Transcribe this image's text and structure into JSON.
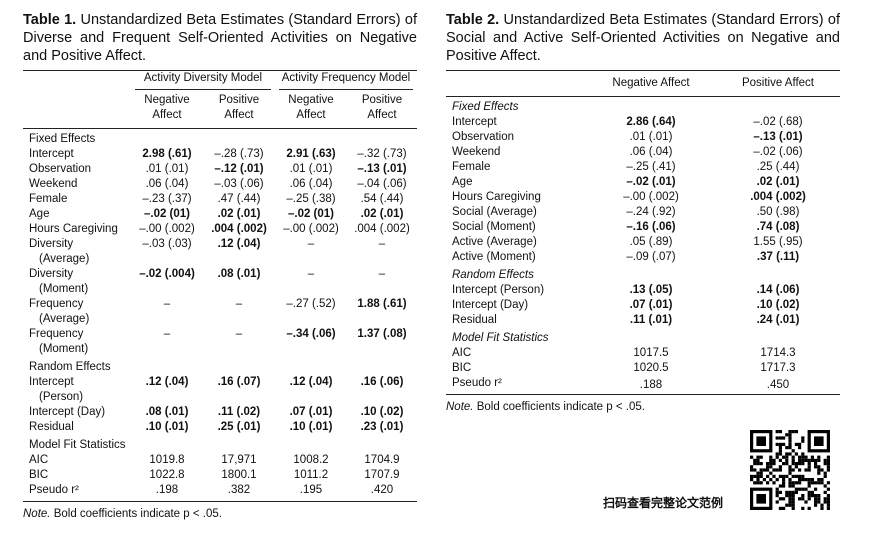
{
  "table1": {
    "label": "Table 1.",
    "title": "Unstandardized Beta Estimates (Standard Errors) of Diverse and Frequent Self-Oriented Activities on Negative and Positive Affect.",
    "group_headers": [
      "Activity Diversity Model",
      "Activity Frequency Model"
    ],
    "col_headers": [
      [
        "Negative",
        "Affect"
      ],
      [
        "Positive",
        "Affect"
      ],
      [
        "Negative",
        "Affect"
      ],
      [
        "Positive",
        "Affect"
      ]
    ],
    "sections": [
      {
        "name": "Fixed Effects",
        "rows": [
          {
            "label": [
              "Intercept"
            ],
            "cells": [
              {
                "v": "2.98 (.61)",
                "b": true
              },
              {
                "v": "–.28 (.73)",
                "b": false
              },
              {
                "v": "2.91 (.63)",
                "b": true
              },
              {
                "v": "–.32 (.73)",
                "b": false
              }
            ]
          },
          {
            "label": [
              "Observation"
            ],
            "cells": [
              {
                "v": ".01 (.01)",
                "b": false
              },
              {
                "v": "–.12 (.01)",
                "b": true
              },
              {
                "v": ".01 (.01)",
                "b": false
              },
              {
                "v": "–.13 (.01)",
                "b": true
              }
            ]
          },
          {
            "label": [
              "Weekend"
            ],
            "cells": [
              {
                "v": ".06 (.04)",
                "b": false
              },
              {
                "v": "–.03 (.06)",
                "b": false
              },
              {
                "v": ".06 (.04)",
                "b": false
              },
              {
                "v": "–.04 (.06)",
                "b": false
              }
            ]
          },
          {
            "label": [
              "Female"
            ],
            "cells": [
              {
                "v": "–.23 (.37)",
                "b": false
              },
              {
                "v": ".47 (.44)",
                "b": false
              },
              {
                "v": "–.25 (.38)",
                "b": false
              },
              {
                "v": ".54 (.44)",
                "b": false
              }
            ]
          },
          {
            "label": [
              "Age"
            ],
            "cells": [
              {
                "v": "–.02 (01)",
                "b": true
              },
              {
                "v": ".02 (.01)",
                "b": true
              },
              {
                "v": "–.02 (01)",
                "b": true
              },
              {
                "v": ".02 (.01)",
                "b": true
              }
            ]
          },
          {
            "label": [
              "Hours Caregiving"
            ],
            "cells": [
              {
                "v": "–.00 (.002)",
                "b": false
              },
              {
                "v": ".004 (.002)",
                "b": true
              },
              {
                "v": "–.00 (.002)",
                "b": false
              },
              {
                "v": ".004 (.002)",
                "b": false
              }
            ]
          },
          {
            "label": [
              "Diversity",
              "(Average)"
            ],
            "cells": [
              {
                "v": "–.03 (.03)",
                "b": false
              },
              {
                "v": ".12 (.04)",
                "b": true
              },
              {
                "v": "–",
                "b": false
              },
              {
                "v": "–",
                "b": false
              }
            ]
          },
          {
            "label": [
              "Diversity",
              "(Moment)"
            ],
            "cells": [
              {
                "v": "–.02 (.004)",
                "b": true
              },
              {
                "v": ".08 (.01)",
                "b": true
              },
              {
                "v": "–",
                "b": false
              },
              {
                "v": "–",
                "b": false
              }
            ]
          },
          {
            "label": [
              "Frequency",
              "(Average)"
            ],
            "cells": [
              {
                "v": "–",
                "b": false
              },
              {
                "v": "–",
                "b": false
              },
              {
                "v": "–.27 (.52)",
                "b": false
              },
              {
                "v": "1.88 (.61)",
                "b": true
              }
            ]
          },
          {
            "label": [
              "Frequency",
              "(Moment)"
            ],
            "cells": [
              {
                "v": "–",
                "b": false
              },
              {
                "v": "–",
                "b": false
              },
              {
                "v": "–.34 (.06)",
                "b": true
              },
              {
                "v": "1.37 (.08)",
                "b": true
              }
            ]
          }
        ]
      },
      {
        "name": "Random Effects",
        "rows": [
          {
            "label": [
              "Intercept",
              "(Person)"
            ],
            "cells": [
              {
                "v": ".12 (.04)",
                "b": true
              },
              {
                "v": ".16 (.07)",
                "b": true
              },
              {
                "v": ".12 (.04)",
                "b": true
              },
              {
                "v": ".16 (.06)",
                "b": true
              }
            ]
          },
          {
            "label": [
              "Intercept (Day)"
            ],
            "cells": [
              {
                "v": ".08 (.01)",
                "b": true
              },
              {
                "v": ".11 (.02)",
                "b": true
              },
              {
                "v": ".07 (.01)",
                "b": true
              },
              {
                "v": ".10 (.02)",
                "b": true
              }
            ]
          },
          {
            "label": [
              "Residual"
            ],
            "cells": [
              {
                "v": ".10 (.01)",
                "b": true
              },
              {
                "v": ".25 (.01)",
                "b": true
              },
              {
                "v": ".10 (.01)",
                "b": true
              },
              {
                "v": ".23 (.01)",
                "b": true
              }
            ]
          }
        ]
      },
      {
        "name": "Model Fit Statistics",
        "rows": [
          {
            "label": [
              "AIC"
            ],
            "cells": [
              {
                "v": "1019.8",
                "b": false
              },
              {
                "v": "17,971",
                "b": false
              },
              {
                "v": "1008.2",
                "b": false
              },
              {
                "v": "1704.9",
                "b": false
              }
            ]
          },
          {
            "label": [
              "BIC"
            ],
            "cells": [
              {
                "v": "1022.8",
                "b": false
              },
              {
                "v": "1800.1",
                "b": false
              },
              {
                "v": "1011.2",
                "b": false
              },
              {
                "v": "1707.9",
                "b": false
              }
            ]
          },
          {
            "label": [
              "Pseudo r²"
            ],
            "cells": [
              {
                "v": ".198",
                "b": false
              },
              {
                "v": ".382",
                "b": false
              },
              {
                "v": ".195",
                "b": false
              },
              {
                "v": ".420",
                "b": false
              }
            ]
          }
        ]
      }
    ],
    "note_label": "Note.",
    "note_text": " Bold coefficients indicate p < .05."
  },
  "table2": {
    "label": "Table 2.",
    "title": "Unstandardized Beta Estimates (Standard Errors) of Social and Active Self-Oriented Activities on Negative and Positive Affect.",
    "col_headers": [
      "Negative Affect",
      "Positive Affect"
    ],
    "sections": [
      {
        "name": "Fixed Effects",
        "rows": [
          {
            "label": "Intercept",
            "cells": [
              {
                "v": "2.86 (.64)",
                "b": true
              },
              {
                "v": "–.02 (.68)",
                "b": false
              }
            ]
          },
          {
            "label": "Observation",
            "cells": [
              {
                "v": ".01 (.01)",
                "b": false
              },
              {
                "v": "–.13 (.01)",
                "b": true
              }
            ]
          },
          {
            "label": "Weekend",
            "cells": [
              {
                "v": ".06 (.04)",
                "b": false
              },
              {
                "v": "–.02 (.06)",
                "b": false
              }
            ]
          },
          {
            "label": "Female",
            "cells": [
              {
                "v": "–.25 (.41)",
                "b": false
              },
              {
                "v": ".25 (.44)",
                "b": false
              }
            ]
          },
          {
            "label": "Age",
            "cells": [
              {
                "v": "–.02 (.01)",
                "b": true
              },
              {
                "v": ".02 (.01)",
                "b": true
              }
            ]
          },
          {
            "label": "Hours Caregiving",
            "cells": [
              {
                "v": "–.00 (.002)",
                "b": false
              },
              {
                "v": ".004 (.002)",
                "b": true
              }
            ]
          },
          {
            "label": "Social (Average)",
            "cells": [
              {
                "v": "–.24 (.92)",
                "b": false
              },
              {
                "v": ".50 (.98)",
                "b": false
              }
            ]
          },
          {
            "label": "Social (Moment)",
            "cells": [
              {
                "v": "–.16 (.06)",
                "b": true
              },
              {
                "v": ".74 (.08)",
                "b": true
              }
            ]
          },
          {
            "label": "Active (Average)",
            "cells": [
              {
                "v": ".05 (.89)",
                "b": false
              },
              {
                "v": "1.55 (.95)",
                "b": false
              }
            ]
          },
          {
            "label": "Active (Moment)",
            "cells": [
              {
                "v": "–.09 (.07)",
                "b": false
              },
              {
                "v": ".37 (.11)",
                "b": true
              }
            ]
          }
        ]
      },
      {
        "name": "Random Effects",
        "rows": [
          {
            "label": "Intercept (Person)",
            "cells": [
              {
                "v": ".13 (.05)",
                "b": true
              },
              {
                "v": ".14 (.06)",
                "b": true
              }
            ]
          },
          {
            "label": "Intercept (Day)",
            "cells": [
              {
                "v": ".07 (.01)",
                "b": true
              },
              {
                "v": ".10 (.02)",
                "b": true
              }
            ]
          },
          {
            "label": "Residual",
            "cells": [
              {
                "v": ".11 (.01)",
                "b": true
              },
              {
                "v": ".24 (.01)",
                "b": true
              }
            ]
          }
        ]
      },
      {
        "name": "Model Fit Statistics",
        "rows": [
          {
            "label": "AIC",
            "cells": [
              {
                "v": "1017.5",
                "b": false
              },
              {
                "v": "1714.3",
                "b": false
              }
            ]
          },
          {
            "label": "BIC",
            "cells": [
              {
                "v": "1020.5",
                "b": false
              },
              {
                "v": "1717.3",
                "b": false
              }
            ]
          },
          {
            "label": "Pseudo r²",
            "cells": [
              {
                "v": ".188",
                "b": false
              },
              {
                "v": ".450",
                "b": false
              }
            ]
          }
        ]
      }
    ],
    "note_label": "Note.",
    "note_text": " Bold coefficients indicate p < .05."
  },
  "qr_caption": "扫码查看完整论文范例"
}
